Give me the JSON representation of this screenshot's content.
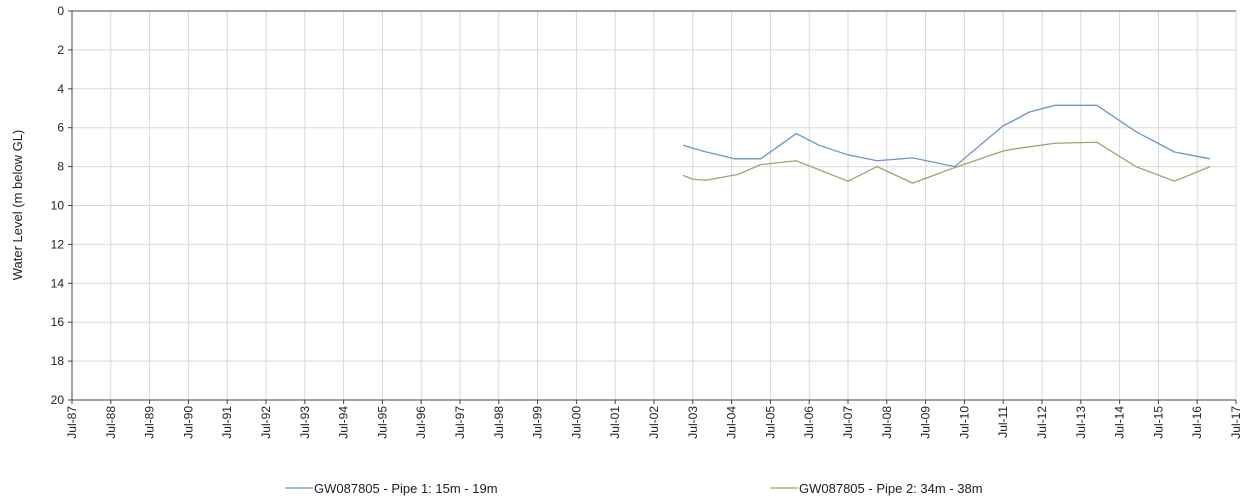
{
  "chart_data": {
    "type": "line",
    "y_label": "Water Level  (m below  GL)",
    "ylim": [
      0,
      20
    ],
    "invert_y": true,
    "yticks": [
      0,
      2,
      4,
      6,
      8,
      10,
      12,
      14,
      16,
      18,
      20
    ],
    "xlim": [
      "1987-07",
      "2017-07"
    ],
    "xticks": [
      {
        "value": "1987-07",
        "label": "Jul-87"
      },
      {
        "value": "1988-07",
        "label": "Jul-88"
      },
      {
        "value": "1989-07",
        "label": "Jul-89"
      },
      {
        "value": "1990-07",
        "label": "Jul-90"
      },
      {
        "value": "1991-07",
        "label": "Jul-91"
      },
      {
        "value": "1992-07",
        "label": "Jul-92"
      },
      {
        "value": "1993-07",
        "label": "Jul-93"
      },
      {
        "value": "1994-07",
        "label": "Jul-94"
      },
      {
        "value": "1995-07",
        "label": "Jul-95"
      },
      {
        "value": "1996-07",
        "label": "Jul-96"
      },
      {
        "value": "1997-07",
        "label": "Jul-97"
      },
      {
        "value": "1998-07",
        "label": "Jul-98"
      },
      {
        "value": "1999-07",
        "label": "Jul-99"
      },
      {
        "value": "2000-07",
        "label": "Jul-00"
      },
      {
        "value": "2001-07",
        "label": "Jul-01"
      },
      {
        "value": "2002-07",
        "label": "Jul-02"
      },
      {
        "value": "2003-07",
        "label": "Jul-03"
      },
      {
        "value": "2004-07",
        "label": "Jul-04"
      },
      {
        "value": "2005-07",
        "label": "Jul-05"
      },
      {
        "value": "2006-07",
        "label": "Jul-06"
      },
      {
        "value": "2007-07",
        "label": "Jul-07"
      },
      {
        "value": "2008-07",
        "label": "Jul-08"
      },
      {
        "value": "2009-07",
        "label": "Jul-09"
      },
      {
        "value": "2010-07",
        "label": "Jul-10"
      },
      {
        "value": "2011-07",
        "label": "Jul-11"
      },
      {
        "value": "2012-07",
        "label": "Jul-12"
      },
      {
        "value": "2013-07",
        "label": "Jul-13"
      },
      {
        "value": "2014-07",
        "label": "Jul-14"
      },
      {
        "value": "2015-07",
        "label": "Jul-15"
      },
      {
        "value": "2016-07",
        "label": "Jul-16"
      },
      {
        "value": "2017-07",
        "label": "Jul-17"
      }
    ],
    "grid": true,
    "legend": "bottom",
    "series": [
      {
        "name": "GW087805 - Pipe 1: 15m - 19m",
        "color": "#6a96c8",
        "x": [
          "2003-04",
          "2003-10",
          "2004-08",
          "2005-04",
          "2006-03",
          "2006-10",
          "2007-07",
          "2008-04",
          "2009-03",
          "2010-04",
          "2011-07",
          "2011-10",
          "2012-03",
          "2012-11",
          "2013-12",
          "2014-12",
          "2015-12",
          "2016-11"
        ],
        "values": [
          6.9,
          7.2,
          7.6,
          7.6,
          6.3,
          6.9,
          7.4,
          7.7,
          7.55,
          8.0,
          5.9,
          5.65,
          5.2,
          4.85,
          4.85,
          6.2,
          7.25,
          7.6
        ]
      },
      {
        "name": "GW087805 - Pipe 2: 34m - 38m",
        "color": "#9aa571",
        "x": [
          "2003-04",
          "2003-07",
          "2003-11",
          "2004-09",
          "2005-04",
          "2006-03",
          "2007-07",
          "2008-04",
          "2009-03",
          "2010-04",
          "2011-07",
          "2011-10",
          "2012-11",
          "2013-12",
          "2014-12",
          "2015-12",
          "2016-11"
        ],
        "values": [
          8.45,
          8.65,
          8.7,
          8.4,
          7.9,
          7.7,
          8.75,
          8.0,
          8.85,
          8.05,
          7.2,
          7.1,
          6.8,
          6.75,
          8.0,
          8.75,
          8.0
        ]
      }
    ]
  }
}
